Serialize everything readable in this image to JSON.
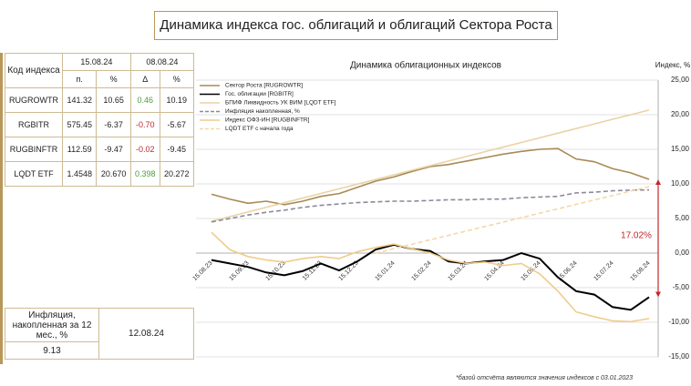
{
  "title": "Динамика индекса гос. облигаций и облигаций Сектора Роста",
  "table": {
    "header": [
      "Код индекса",
      "15.08.24",
      "08.08.24"
    ],
    "subheader": [
      "п.",
      "%",
      "Δ",
      "%"
    ],
    "rows": [
      [
        "RUGROWTR",
        "141.32",
        "10.65",
        "0.46",
        "10.19"
      ],
      [
        "RGBITR",
        "575.45",
        "-6.37",
        "-0.70",
        "-5.67"
      ],
      [
        "RUGBINFTR",
        "112.59",
        "-9.47",
        "-0.02",
        "-9.45"
      ],
      [
        "LQDT ETF",
        "1.4548",
        "20.670",
        "0.398",
        "20.272"
      ]
    ]
  },
  "inflation": {
    "label": "Инфляция, накопленная за 12 мес., %",
    "value": "9.13",
    "date": "12.08.24"
  },
  "footnote": "*базой отсчёта являются значения индексов с 03.01.2023",
  "chart_data": {
    "type": "line",
    "title": "Динамика облигационных индексов",
    "y_label": "Индекс, %",
    "x": [
      "15.08.23",
      "01.09.23",
      "15.09.23",
      "01.10.23",
      "15.10.23",
      "01.11.23",
      "15.11.23",
      "01.12.23",
      "15.12.23",
      "01.01.24",
      "15.01.24",
      "01.02.24",
      "15.02.24",
      "01.03.24",
      "15.03.24",
      "01.04.24",
      "15.04.24",
      "01.05.24",
      "15.05.24",
      "01.06.24",
      "15.06.24",
      "01.07.24",
      "15.07.24",
      "01.08.24",
      "15.08.24"
    ],
    "series": [
      {
        "name": "Сектор Роста [RUGROWTR]",
        "color": "#a88a55",
        "dashed": false,
        "values": [
          8.5,
          7.8,
          7.2,
          7.5,
          7.0,
          7.5,
          8.2,
          8.6,
          9.5,
          10.4,
          11.0,
          11.8,
          12.5,
          12.8,
          13.3,
          13.8,
          14.3,
          14.7,
          15.0,
          15.1,
          13.6,
          13.2,
          12.2,
          11.6,
          10.65
        ]
      },
      {
        "name": "Гос. облигации [RGBITR]",
        "color": "#000000",
        "dashed": false,
        "values": [
          -1.0,
          -1.5,
          -2.0,
          -2.8,
          -3.2,
          -2.6,
          -1.5,
          -2.5,
          -1.2,
          0.5,
          1.2,
          0.6,
          0.3,
          -1.2,
          -1.5,
          -1.2,
          -1.0,
          0.0,
          -0.8,
          -3.5,
          -5.5,
          -6.0,
          -7.8,
          -8.2,
          -6.37
        ]
      },
      {
        "name": "БПИФ Ликвидность УК ВИМ [LQDT ETF]",
        "color": "#ead3a6",
        "dashed": false,
        "values": [
          4.6,
          5.27,
          5.94,
          6.61,
          7.28,
          7.95,
          8.62,
          9.29,
          9.96,
          10.63,
          11.3,
          11.97,
          12.64,
          13.31,
          13.98,
          14.65,
          15.32,
          15.99,
          16.66,
          17.33,
          18.0,
          18.67,
          19.34,
          20.0,
          20.67
        ]
      },
      {
        "name": "Инфляция накопленная, %",
        "color": "#8a8a9a",
        "dashed": true,
        "values": [
          4.5,
          5.0,
          5.5,
          5.9,
          6.2,
          6.6,
          6.9,
          7.1,
          7.3,
          7.4,
          7.5,
          7.5,
          7.6,
          7.7,
          7.7,
          7.8,
          7.8,
          8.0,
          8.1,
          8.2,
          8.7,
          8.8,
          9.0,
          9.1,
          9.13
        ]
      },
      {
        "name": "Индекс ОФЗ-ИН [RUGBINFTR]",
        "color": "#f0cc8a",
        "dashed": false,
        "values": [
          3.0,
          0.5,
          -0.5,
          -1.0,
          -1.3,
          -0.8,
          -0.5,
          -0.8,
          0.2,
          0.8,
          1.3,
          0.6,
          0.0,
          -1.0,
          -1.5,
          -1.3,
          -1.8,
          -1.5,
          -3.0,
          -5.5,
          -8.5,
          -9.2,
          -9.8,
          -9.9,
          -9.47
        ]
      },
      {
        "name": "LQDT ETF с начала года",
        "color": "#f3d8a8",
        "dashed": true,
        "values": [
          null,
          null,
          null,
          null,
          null,
          null,
          null,
          null,
          null,
          0.0,
          0.64,
          1.28,
          1.92,
          2.56,
          3.2,
          3.84,
          4.48,
          5.12,
          5.76,
          6.4,
          7.04,
          7.68,
          8.32,
          8.96,
          9.6
        ]
      }
    ],
    "annotation": "17.02%",
    "ylim": [
      -15,
      25
    ],
    "yticks": [
      {
        "value": -15,
        "label": "-15,00"
      },
      {
        "value": -10,
        "label": "-10,00"
      },
      {
        "value": -5,
        "label": "-5,00"
      },
      {
        "value": 0,
        "label": "0,00"
      },
      {
        "value": 5,
        "label": "5,00"
      },
      {
        "value": 10,
        "label": "10,00"
      },
      {
        "value": 15,
        "label": "15,00"
      },
      {
        "value": 20,
        "label": "20,00"
      },
      {
        "value": 25,
        "label": "25,00"
      }
    ],
    "grid": true
  }
}
